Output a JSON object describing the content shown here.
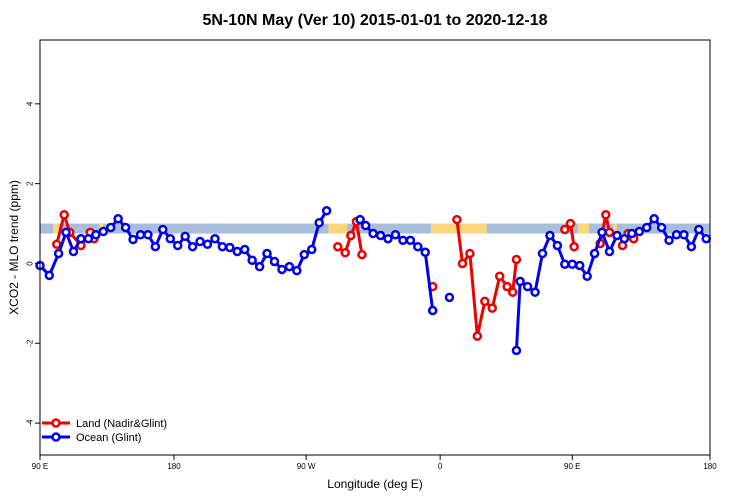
{
  "chart_data": {
    "type": "line",
    "title": "5N-10N May (Ver 10)   2015-01-01 to 2020-12-18",
    "xlabel": "Longitude (deg E)",
    "ylabel": "XCO2 - MLO trend (ppm)",
    "xlim": [
      90,
      450
    ],
    "ylim": [
      -4.8,
      5.6
    ],
    "x_ticks": [
      {
        "value": 90,
        "label": "90 E"
      },
      {
        "value": 162,
        "label": "180"
      },
      {
        "value": 233,
        "label": "90 W"
      },
      {
        "value": 305,
        "label": "0"
      },
      {
        "value": 376,
        "label": "90 E"
      },
      {
        "value": 450,
        "label": "180"
      }
    ],
    "y_ticks": [
      {
        "value": -4,
        "label": "-4"
      },
      {
        "value": -2,
        "label": "-2"
      },
      {
        "value": 0,
        "label": "0"
      },
      {
        "value": 2,
        "label": "2"
      },
      {
        "value": 4,
        "label": "4"
      }
    ],
    "background_band": {
      "y_low": 0.75,
      "y_high": 1.0,
      "color": "#a8bedb",
      "land_color": "#ffd680"
    },
    "land_band_x_ranges": [
      [
        97,
        100
      ],
      [
        122,
        124
      ],
      [
        245,
        255
      ],
      [
        300,
        330
      ],
      [
        379,
        385
      ],
      [
        398,
        400
      ]
    ],
    "legend_position": "bottom-left",
    "series": [
      {
        "name": "Land (Nadir&Glint)",
        "color": "#ee0000",
        "segments": [
          [
            [
              99,
              0.48
            ],
            [
              103,
              1.22
            ],
            [
              106,
              0.78
            ],
            [
              112,
              0.45
            ],
            [
              117,
              0.78
            ],
            [
              119,
              0.62
            ]
          ],
          [
            [
              250,
              0.42
            ],
            [
              254,
              0.27
            ],
            [
              257,
              0.7
            ],
            [
              260,
              1.05
            ],
            [
              263,
              0.22
            ]
          ],
          [
            [
              301,
              -0.58
            ]
          ],
          [
            [
              314,
              1.1
            ],
            [
              317,
              0.0
            ],
            [
              321,
              0.25
            ],
            [
              325,
              -1.82
            ],
            [
              329,
              -0.95
            ],
            [
              333,
              -1.12
            ],
            [
              337,
              -0.32
            ],
            [
              341,
              -0.58
            ],
            [
              344,
              -0.72
            ],
            [
              346,
              0.1
            ]
          ],
          [
            [
              372,
              0.85
            ],
            [
              375,
              1.0
            ],
            [
              377,
              0.42
            ]
          ],
          [
            [
              391,
              0.5
            ],
            [
              394,
              1.22
            ],
            [
              396,
              0.78
            ]
          ],
          [
            [
              403,
              0.45
            ],
            [
              406,
              0.75
            ],
            [
              409,
              0.62
            ]
          ]
        ]
      },
      {
        "name": "Ocean (Glint)",
        "color": "#0000ee",
        "segments": [
          [
            [
              90,
              -0.05
            ],
            [
              95,
              -0.3
            ],
            [
              100,
              0.25
            ],
            [
              104,
              0.78
            ],
            [
              108,
              0.3
            ],
            [
              112,
              0.62
            ],
            [
              116,
              0.62
            ],
            [
              120,
              0.72
            ],
            [
              124,
              0.8
            ],
            [
              128,
              0.9
            ],
            [
              132,
              1.12
            ],
            [
              136,
              0.9
            ],
            [
              140,
              0.6
            ],
            [
              144,
              0.72
            ],
            [
              148,
              0.72
            ],
            [
              152,
              0.42
            ],
            [
              156,
              0.85
            ],
            [
              160,
              0.62
            ],
            [
              164,
              0.45
            ],
            [
              168,
              0.68
            ],
            [
              172,
              0.42
            ],
            [
              176,
              0.55
            ],
            [
              180,
              0.48
            ],
            [
              184,
              0.62
            ],
            [
              188,
              0.42
            ],
            [
              192,
              0.4
            ],
            [
              196,
              0.3
            ],
            [
              200,
              0.35
            ],
            [
              204,
              0.08
            ],
            [
              208,
              -0.08
            ],
            [
              212,
              0.25
            ],
            [
              216,
              0.05
            ],
            [
              220,
              -0.15
            ],
            [
              224,
              -0.08
            ],
            [
              228,
              -0.18
            ],
            [
              232,
              0.22
            ],
            [
              236,
              0.35
            ],
            [
              240,
              1.02
            ],
            [
              244,
              1.32
            ]
          ],
          [
            [
              262,
              1.1
            ],
            [
              265,
              0.95
            ],
            [
              269,
              0.75
            ],
            [
              273,
              0.7
            ],
            [
              277,
              0.62
            ],
            [
              281,
              0.72
            ],
            [
              285,
              0.58
            ],
            [
              289,
              0.58
            ],
            [
              293,
              0.42
            ],
            [
              297,
              0.28
            ],
            [
              301,
              -1.18
            ]
          ],
          [
            [
              310,
              -0.85
            ]
          ],
          [
            [
              346,
              -2.18
            ],
            [
              348,
              -0.45
            ],
            [
              352,
              -0.58
            ],
            [
              356,
              -0.72
            ],
            [
              360,
              0.25
            ],
            [
              364,
              0.7
            ],
            [
              368,
              0.45
            ],
            [
              372,
              -0.02
            ],
            [
              376,
              -0.02
            ],
            [
              380,
              -0.05
            ],
            [
              384,
              -0.32
            ],
            [
              388,
              0.25
            ],
            [
              392,
              0.78
            ],
            [
              396,
              0.3
            ],
            [
              400,
              0.7
            ],
            [
              404,
              0.62
            ],
            [
              408,
              0.75
            ],
            [
              412,
              0.8
            ],
            [
              416,
              0.9
            ],
            [
              420,
              1.12
            ],
            [
              424,
              0.9
            ],
            [
              428,
              0.58
            ],
            [
              432,
              0.72
            ],
            [
              436,
              0.72
            ],
            [
              440,
              0.42
            ],
            [
              444,
              0.85
            ],
            [
              448,
              0.62
            ]
          ]
        ]
      }
    ]
  }
}
